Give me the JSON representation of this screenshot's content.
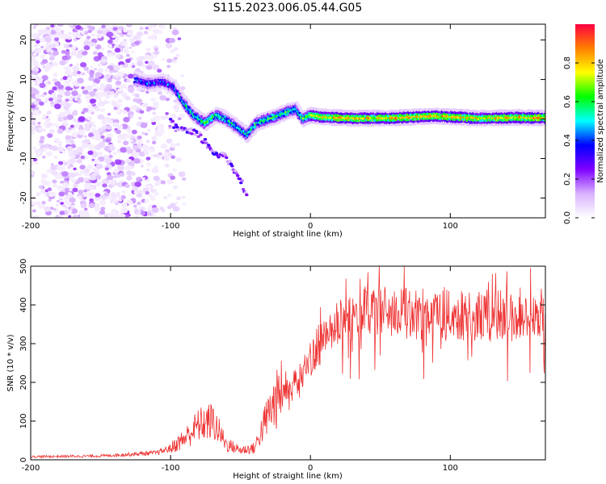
{
  "title": "S115.2023.006.05.44.G05",
  "chart_data": [
    {
      "type": "heatmap",
      "xlabel": "Height of straight line (km)",
      "ylabel": "Frequency (Hz)",
      "xlim": [
        -200,
        168
      ],
      "ylim": [
        -25,
        24
      ],
      "xticks": [
        "-200",
        "-100",
        "0",
        "100"
      ],
      "yticks": [
        "20",
        "10",
        "0",
        "-10",
        "-20"
      ],
      "colorbar": {
        "label": "Normalized spectral amplitude",
        "range": [
          0,
          1
        ],
        "ticks": [
          "0.0",
          "0.2",
          "0.4",
          "0.6",
          "0.8"
        ],
        "colors": [
          "#ffffff",
          "#d9b3ff",
          "#8000ff",
          "#0000ff",
          "#00ffff",
          "#00ff00",
          "#ffff00",
          "#ff8000",
          "#ff0040"
        ]
      },
      "ridge": {
        "x": [
          -125,
          -115,
          -105,
          -97,
          -90,
          -83,
          -75,
          -67,
          -60,
          -52,
          -45,
          -38,
          -30,
          -22,
          -15,
          -10,
          -5,
          0,
          10,
          30,
          60,
          90,
          120,
          150,
          168
        ],
        "y": [
          10,
          9,
          9.5,
          8,
          4,
          1,
          -1,
          1,
          0,
          -2,
          -4,
          -1,
          0,
          1,
          2,
          2.5,
          0,
          1,
          0.5,
          0.2,
          0.3,
          0.8,
          0.2,
          0.4,
          0.3
        ]
      },
      "secondary_branch": {
        "x": [
          -100,
          -90,
          -80,
          -70,
          -60,
          -52,
          -45
        ],
        "y": [
          -1,
          -3,
          -4,
          -8,
          -10,
          -14,
          -19
        ]
      }
    },
    {
      "type": "line",
      "xlabel": "Height of straight line (km)",
      "ylabel": "SNR (10 * v/v)",
      "xlim": [
        -200,
        168
      ],
      "ylim": [
        0,
        500
      ],
      "xticks": [
        "-200",
        "-100",
        "0",
        "100"
      ],
      "yticks": [
        "500",
        "400",
        "300",
        "200",
        "100",
        "0"
      ],
      "color": "#ee3333",
      "series": [
        {
          "envelope_x": [
            -200,
            -150,
            -110,
            -100,
            -90,
            -80,
            -70,
            -60,
            -50,
            -40,
            -30,
            -20,
            -10,
            0,
            10,
            20,
            30,
            40,
            50,
            60,
            80,
            100,
            120,
            140,
            168
          ],
          "values": [
            8,
            10,
            18,
            30,
            55,
            90,
            100,
            40,
            25,
            30,
            120,
            180,
            200,
            260,
            310,
            350,
            370,
            380,
            385,
            380,
            375,
            372,
            370,
            368,
            360
          ]
        }
      ]
    }
  ]
}
